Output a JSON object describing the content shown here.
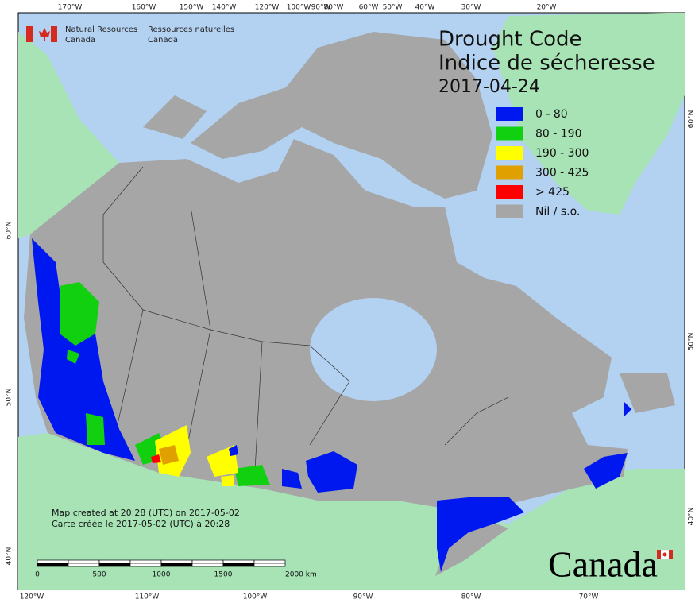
{
  "header": {
    "en": [
      "Natural Resources",
      "Canada"
    ],
    "fr": [
      "Ressources naturelles",
      "Canada"
    ]
  },
  "title": [
    "Drought Code",
    "Indice de sécheresse",
    "2017-04-24"
  ],
  "legend": [
    {
      "label": "0 - 80",
      "color": "#0018f0"
    },
    {
      "label": "80 - 190",
      "color": "#10d010"
    },
    {
      "label": "190 - 300",
      "color": "#ffff00"
    },
    {
      "label": "300 - 425",
      "color": "#e0a000"
    },
    {
      "label": "> 425",
      "color": "#ff0000"
    },
    {
      "label": "Nil / s.o.",
      "color": "#a6a6a6"
    }
  ],
  "graticule": {
    "top": [
      "170°W",
      "160°W",
      "150°W",
      "140°W",
      "120°W",
      "100°W",
      "90°W",
      "80°W",
      "60°W",
      "50°W",
      "40°W",
      "30°W",
      "20°W"
    ],
    "bottom": [
      "120°W",
      "110°W",
      "100°W",
      "90°W",
      "80°W",
      "70°W"
    ],
    "left": [
      "60°N",
      "50°N",
      "40°N"
    ],
    "right": [
      "60°N",
      "50°N",
      "40°N"
    ]
  },
  "notes": [
    "Map created at 20:28 (UTC) on 2017-05-02",
    "Carte créée le 2017-05-02 (UTC) à 20:28"
  ],
  "scale": [
    "0",
    "500",
    "1000",
    "1500",
    "2000 km"
  ],
  "wordmark": "Canada"
}
